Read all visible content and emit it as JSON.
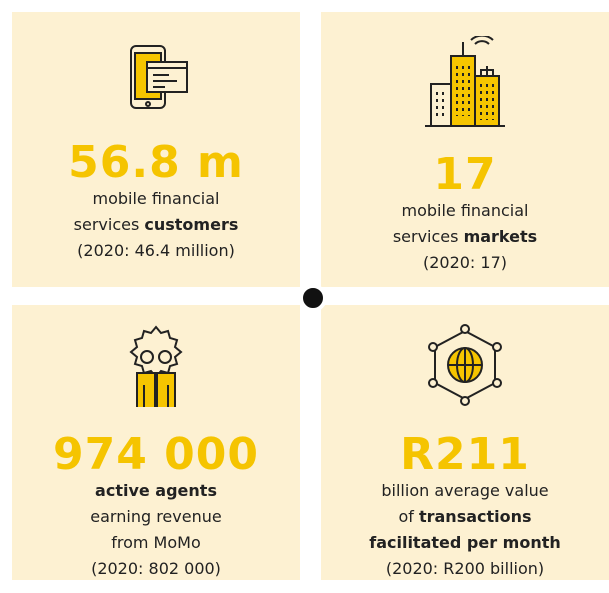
{
  "cards": [
    {
      "value": "56.8 m",
      "lines": [
        [
          {
            "text": "mobile financial"
          }
        ],
        [
          {
            "text": "services "
          },
          {
            "text": "customers",
            "bold": true
          }
        ],
        [
          {
            "text": "(2020: 46.4 million)"
          }
        ]
      ]
    },
    {
      "value": "17",
      "lines": [
        [
          {
            "text": "mobile financial"
          }
        ],
        [
          {
            "text": "services "
          },
          {
            "text": "markets",
            "bold": true
          }
        ],
        [
          {
            "text": "(2020: 17)"
          }
        ]
      ]
    },
    {
      "value": "974 000",
      "lines": [
        [
          {
            "text": "active agents",
            "bold": true
          }
        ],
        [
          {
            "text": "earning revenue"
          }
        ],
        [
          {
            "text": "from MoMo"
          }
        ],
        [
          {
            "text": "(2020: 802 000)"
          }
        ]
      ]
    },
    {
      "value": "R211",
      "lines": [
        [
          {
            "text": "billion average value"
          }
        ],
        [
          {
            "text": "of "
          },
          {
            "text": "transactions",
            "bold": true
          }
        ],
        [
          {
            "text": "facilitated per month",
            "bold": true
          }
        ],
        [
          {
            "text": "(2020: R200 billion)"
          }
        ]
      ]
    }
  ]
}
